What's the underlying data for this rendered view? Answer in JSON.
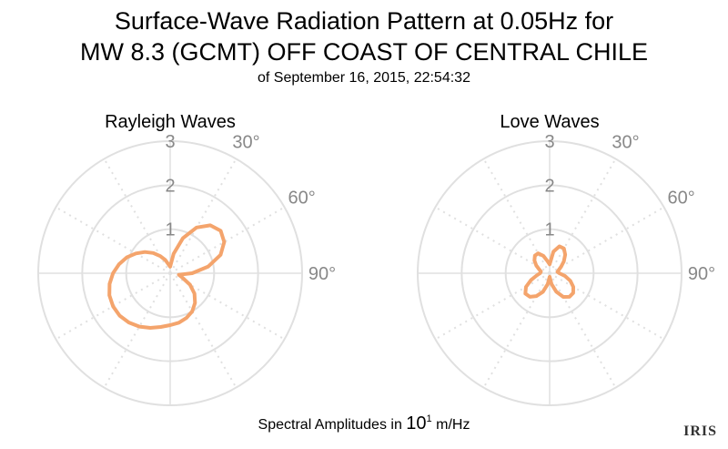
{
  "header": {
    "title_line1": "Surface-Wave Radiation Pattern at 0.05Hz for",
    "title_line2": "MW 8.3 (GCMT) OFF COAST OF CENTRAL CHILE",
    "subtitle": "of September 16, 2015, 22:54:32"
  },
  "footer": {
    "prefix": "Spectral Amplitudes in ",
    "base": "10",
    "exponent": "1",
    "unit": " m/Hz"
  },
  "logo": {
    "text": "IRIS"
  },
  "colors": {
    "series": "#f4a46c",
    "grid": "#e0e0e0",
    "tick": "#888888"
  },
  "chart_data": [
    {
      "type": "polar-line",
      "title": "Rayleigh Waves",
      "rlim": [
        0,
        3
      ],
      "radial_ticks": [
        "1",
        "2",
        "3"
      ],
      "angular_ticks": [
        "30°",
        "60°",
        "90°"
      ],
      "theta_deg": [
        0,
        10,
        20,
        30,
        40,
        50,
        60,
        70,
        80,
        90,
        100,
        110,
        120,
        130,
        140,
        150,
        160,
        170,
        180,
        190,
        200,
        210,
        220,
        230,
        240,
        250,
        260,
        270,
        280,
        290,
        300,
        310,
        320,
        330,
        340,
        350
      ],
      "r": [
        0.15,
        0.45,
        0.85,
        1.2,
        1.42,
        1.5,
        1.42,
        1.22,
        0.88,
        0.5,
        0.2,
        0.3,
        0.52,
        0.72,
        0.88,
        1.0,
        1.08,
        1.14,
        1.18,
        1.24,
        1.32,
        1.4,
        1.46,
        1.5,
        1.5,
        1.47,
        1.4,
        1.3,
        1.18,
        1.05,
        0.9,
        0.75,
        0.6,
        0.45,
        0.32,
        0.2
      ]
    },
    {
      "type": "polar-line",
      "title": "Love Waves",
      "rlim": [
        0,
        3
      ],
      "radial_ticks": [
        "1",
        "2",
        "3"
      ],
      "angular_ticks": [
        "30°",
        "60°",
        "90°"
      ],
      "theta_deg": [
        0,
        10,
        20,
        30,
        40,
        50,
        60,
        70,
        80,
        90,
        100,
        110,
        120,
        130,
        140,
        150,
        160,
        170,
        180,
        190,
        200,
        210,
        220,
        230,
        240,
        250,
        260,
        270,
        280,
        290,
        300,
        310,
        320,
        330,
        340,
        350
      ],
      "r": [
        0.2,
        0.5,
        0.65,
        0.65,
        0.55,
        0.42,
        0.3,
        0.22,
        0.18,
        0.22,
        0.35,
        0.5,
        0.62,
        0.7,
        0.7,
        0.62,
        0.45,
        0.25,
        0.08,
        0.25,
        0.45,
        0.6,
        0.7,
        0.72,
        0.62,
        0.45,
        0.3,
        0.22,
        0.2,
        0.25,
        0.35,
        0.45,
        0.52,
        0.52,
        0.42,
        0.28
      ]
    }
  ]
}
